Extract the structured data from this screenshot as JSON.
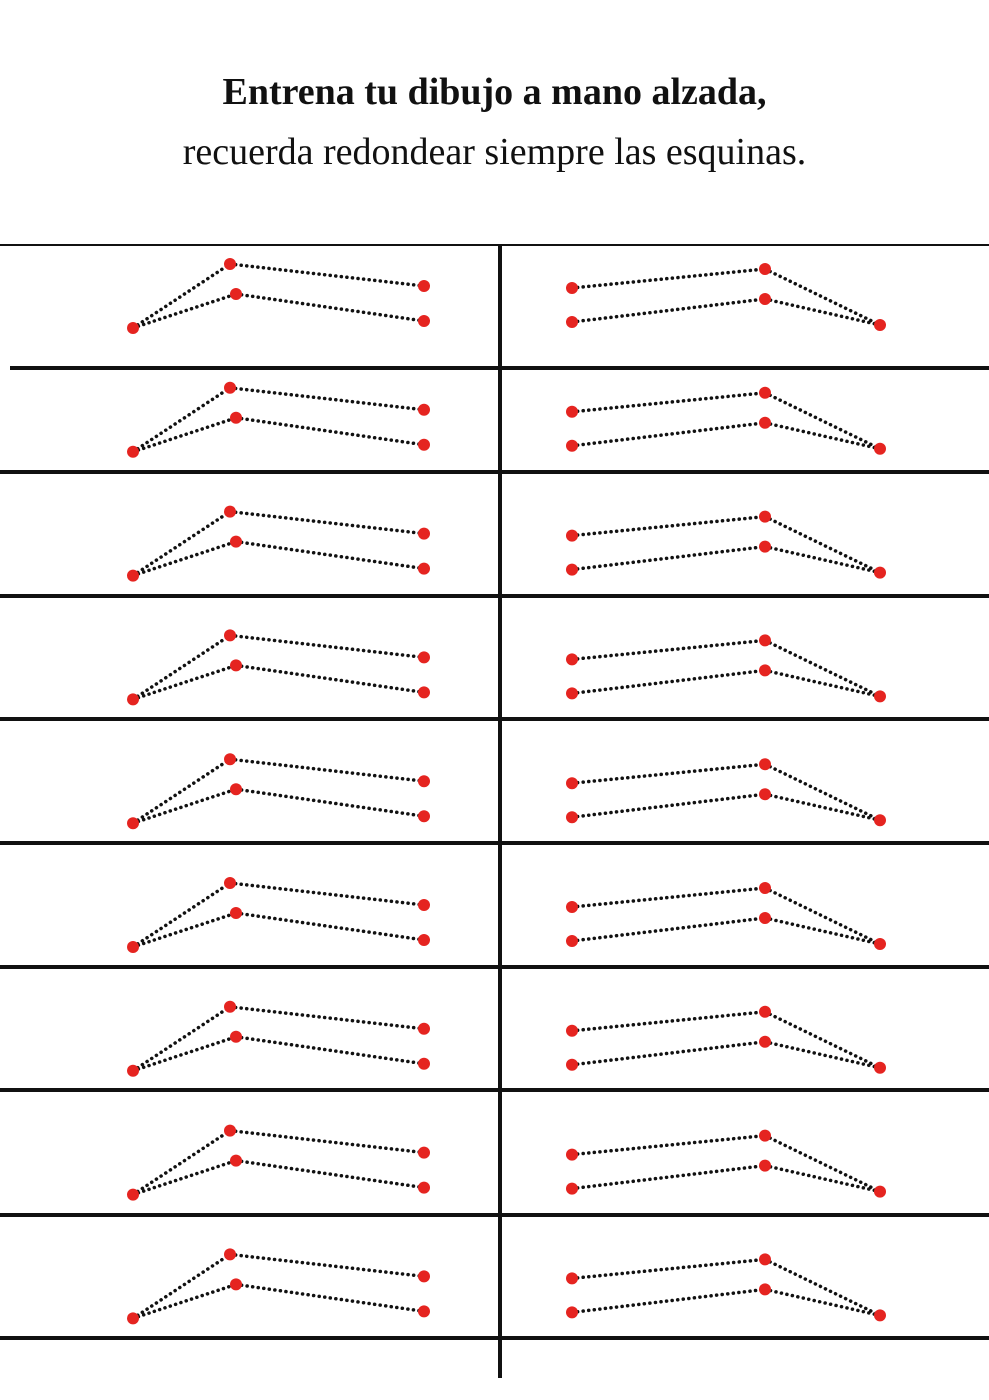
{
  "header": {
    "title": "Entrena tu dibujo a mano alzada,",
    "subtitle": "recuerda redondear siempre las esquinas."
  }
}
